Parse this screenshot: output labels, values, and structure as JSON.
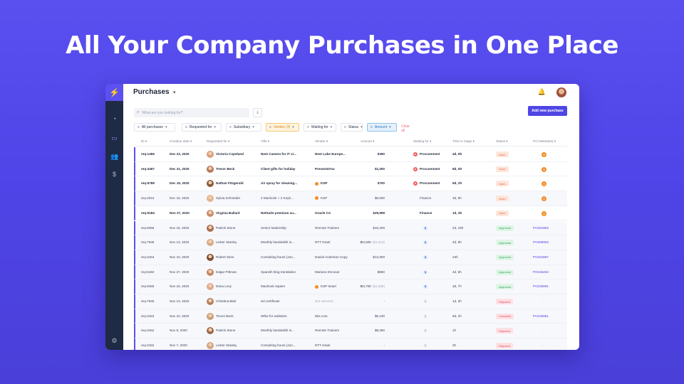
{
  "headline": "All Your Company Purchases in One Place",
  "app": {
    "logo": "⚡",
    "title": "Purchases",
    "sidebar_icons": [
      "chart-icon",
      "purchases-icon",
      "team-icon",
      "money-icon",
      "settings-icon"
    ]
  },
  "search": {
    "placeholder": "What are you looking for?"
  },
  "add_button": "Add new purchase",
  "filters": [
    {
      "label": "All purchases",
      "style": "plain"
    },
    {
      "label": "Requested for",
      "style": "plain"
    },
    {
      "label": "Subsidiary",
      "style": "plain"
    },
    {
      "label": "Vendor (3)",
      "style": "vendor"
    },
    {
      "label": "Waiting for",
      "style": "plain"
    },
    {
      "label": "Status",
      "style": "plain"
    },
    {
      "label": "Amount",
      "style": "amount"
    }
  ],
  "clear_all": "Clear all",
  "columns": [
    "ID",
    "Creation date",
    "Requested for",
    "Title",
    "Vendor",
    "Amount",
    "Waiting for",
    "Time in stage",
    "Status",
    "PO (NetSuite)"
  ],
  "rows": [
    {
      "id": "req-1456",
      "date": "Dec 23, 2020",
      "requester": "Victoria Copeland",
      "title": "Nest Camera for IT vi...",
      "vendor": "Nest Labs Europe...",
      "vendor_icon": false,
      "amount": "$350",
      "amount_sub": "",
      "waiting": "Procurement",
      "waiting_icon": "red",
      "time": "4d, 9h",
      "status": "Open",
      "po": "",
      "po_icon": true,
      "unread": true
    },
    {
      "id": "req-4497",
      "date": "Dec 21, 2020",
      "requester": "Trevor Beck",
      "title": "Client gifts for holiday",
      "vendor": "Present4You",
      "vendor_icon": false,
      "amount": "$1,000",
      "amount_sub": "",
      "waiting": "Procurement",
      "waiting_icon": "red",
      "time": "8d, 5h",
      "status": "Open",
      "po": "",
      "po_icon": true,
      "unread": true
    },
    {
      "id": "req-5789",
      "date": "Dec 19, 2020",
      "requester": "Nathan Fitzgerald",
      "title": "Air spray for cleaning...",
      "vendor": "KSP",
      "vendor_icon": true,
      "amount": "$700",
      "amount_sub": "",
      "waiting": "Procurement",
      "waiting_icon": "red",
      "time": "5d, 2h",
      "status": "Open",
      "po": "",
      "po_icon": true,
      "unread": true
    },
    {
      "id": "req-3344",
      "date": "Dec 15, 2020",
      "requester": "Sylvia Schneider",
      "title": "2 Macbook + 2 Keyb...",
      "vendor": "KSP",
      "vendor_icon": true,
      "amount": "$9,500",
      "amount_sub": "",
      "waiting": "Finance",
      "waiting_icon": "",
      "time": "3d, 8h",
      "status": "Open",
      "po": "",
      "po_icon": true,
      "unread": false
    },
    {
      "id": "req-5184",
      "date": "Nov 27, 2020",
      "requester": "Virginia Ballard",
      "title": "NetSuite premium su...",
      "vendor": "Oracle CA",
      "vendor_icon": false,
      "amount": "$29,999",
      "amount_sub": "",
      "waiting": "Finance",
      "waiting_icon": "",
      "time": "1d, 3h",
      "status": "Open",
      "po": "",
      "po_icon": true,
      "unread": true
    },
    {
      "id": "req-9456",
      "date": "Nov 16, 2020",
      "requester": "Patrick Stone",
      "title": "Senior leadership",
      "vendor": "Remote Trainers",
      "vendor_icon": false,
      "amount": "$10,200",
      "amount_sub": "",
      "waiting": "$",
      "waiting_icon": "blue",
      "time": "2d, 15h",
      "status": "Approved",
      "po": "PO264953",
      "po_icon": false,
      "unread": false
    },
    {
      "id": "req-7548",
      "date": "Nov 13, 2020",
      "requester": "Lester Stanley",
      "title": "Monthly bandwidth in...",
      "vendor": "NTT Israel",
      "vendor_icon": false,
      "amount": "₪4,500",
      "amount_sub": "($1,323)",
      "waiting": "$",
      "waiting_icon": "blue",
      "time": "4d, 5h",
      "status": "Approved",
      "po": "PO258953",
      "po_icon": false,
      "unread": false
    },
    {
      "id": "req-3164",
      "date": "Nov 10, 2020",
      "requester": "Robert Sims",
      "title": "Consulting hours (Jun...",
      "vendor": "Daniel Anderson Copy",
      "vendor_icon": false,
      "amount": "$12,800",
      "amount_sub": "",
      "waiting": "$",
      "waiting_icon": "blue",
      "time": "23h",
      "status": "Approved",
      "po": "PO254887",
      "po_icon": false,
      "unread": false
    },
    {
      "id": "req-5184",
      "date": "Nov 27, 2020",
      "requester": "Edgar Pittman",
      "title": "Spanish blog translation",
      "vendor": "Mariano Escovar",
      "vendor_icon": false,
      "amount": "$550",
      "amount_sub": "",
      "waiting": "$",
      "waiting_icon": "blue",
      "time": "4d, 5h",
      "status": "Approved",
      "po": "PO155264",
      "po_icon": false,
      "unread": false
    },
    {
      "id": "req-9456",
      "date": "Nov 16, 2020",
      "requester": "Dana Levy",
      "title": "Macbook repairs",
      "vendor": "KSP Israel",
      "vendor_icon": true,
      "amount": "₪3,700",
      "amount_sub": "($1,088)",
      "waiting": "$",
      "waiting_icon": "blue",
      "time": "3d, 7h",
      "status": "Approved",
      "po": "PO155991",
      "po_icon": false,
      "unread": false
    },
    {
      "id": "req-7548",
      "date": "Nov 13, 2020",
      "requester": "Christina Blair",
      "title": "ssl certificate",
      "vendor": "Not selected",
      "vendor_icon": false,
      "amount": "-",
      "amount_sub": "",
      "waiting": "$",
      "waiting_icon": "gray",
      "time": "1d, 3h",
      "status": "Rejected",
      "po": "-",
      "po_icon": false,
      "unread": false
    },
    {
      "id": "req-3163",
      "date": "Nov 10, 2020",
      "requester": "Trevor Beck",
      "title": "Wfee for websites",
      "vendor": "Wix.com",
      "vendor_icon": false,
      "amount": "$5,100",
      "amount_sub": "",
      "waiting": "$",
      "waiting_icon": "gray",
      "time": "5d, 2h",
      "status": "Canceled",
      "po": "PO155951",
      "po_icon": false,
      "unread": false
    },
    {
      "id": "req-3162",
      "date": "Nov 9, 2020",
      "requester": "Patrick Stone",
      "title": "Monthly bandwidth in...",
      "vendor": "Remote Trainers",
      "vendor_icon": false,
      "amount": "$8,250",
      "amount_sub": "",
      "waiting": "$",
      "waiting_icon": "gray",
      "time": "1h",
      "status": "Rejected",
      "po": "-",
      "po_icon": false,
      "unread": false
    },
    {
      "id": "req-3162",
      "date": "Nov 7, 2020",
      "requester": "Lester Stanley",
      "title": "Consulting hours (Jun...",
      "vendor": "NTT Israel",
      "vendor_icon": false,
      "amount": "-",
      "amount_sub": "",
      "waiting": "$",
      "waiting_icon": "gray",
      "time": "2h",
      "status": "Rejected",
      "po": "-",
      "po_icon": false,
      "unread": false
    }
  ],
  "colors": {
    "brand": "#4f46e5",
    "sidebar": "#1f2a44",
    "background": "#5a4fef"
  }
}
